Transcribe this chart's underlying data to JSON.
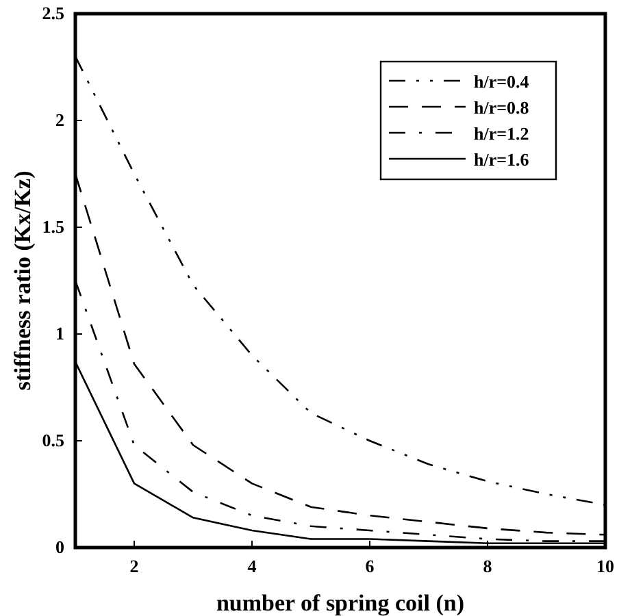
{
  "chart_data": {
    "type": "line",
    "xlabel": "number of spring coil (n)",
    "ylabel": "stiffness ratio (Kx/Kz)",
    "x": [
      1,
      2,
      3,
      4,
      5,
      6,
      7,
      8,
      9,
      10
    ],
    "series": [
      {
        "name": "h/r=0.4",
        "color": "#000000",
        "line_style": "dashed",
        "values": [
          2.3,
          1.75,
          1.23,
          0.9,
          0.63,
          0.5,
          0.39,
          0.31,
          0.25,
          0.2
        ]
      },
      {
        "name": "h/r=0.8",
        "color": "#000000",
        "line_style": "dashed",
        "values": [
          1.75,
          0.86,
          0.48,
          0.3,
          0.19,
          0.15,
          0.12,
          0.09,
          0.07,
          0.06
        ]
      },
      {
        "name": "h/r=1.2",
        "color": "#000000",
        "line_style": "dashed",
        "values": [
          1.25,
          0.48,
          0.26,
          0.15,
          0.1,
          0.08,
          0.06,
          0.04,
          0.03,
          0.03
        ]
      },
      {
        "name": "h/r=1.6",
        "color": "#000000",
        "line_style": "solid",
        "values": [
          0.87,
          0.3,
          0.14,
          0.08,
          0.04,
          0.04,
          0.03,
          0.02,
          0.02,
          0.02
        ]
      }
    ],
    "xlim": [
      1,
      10
    ],
    "xticks": [
      2,
      4,
      6,
      8,
      10
    ],
    "ylim": [
      0,
      2.5
    ],
    "yticks": [
      0,
      0.5,
      1,
      1.5,
      2,
      2.5
    ],
    "legend": "top right",
    "grid": false,
    "marker": "none"
  }
}
